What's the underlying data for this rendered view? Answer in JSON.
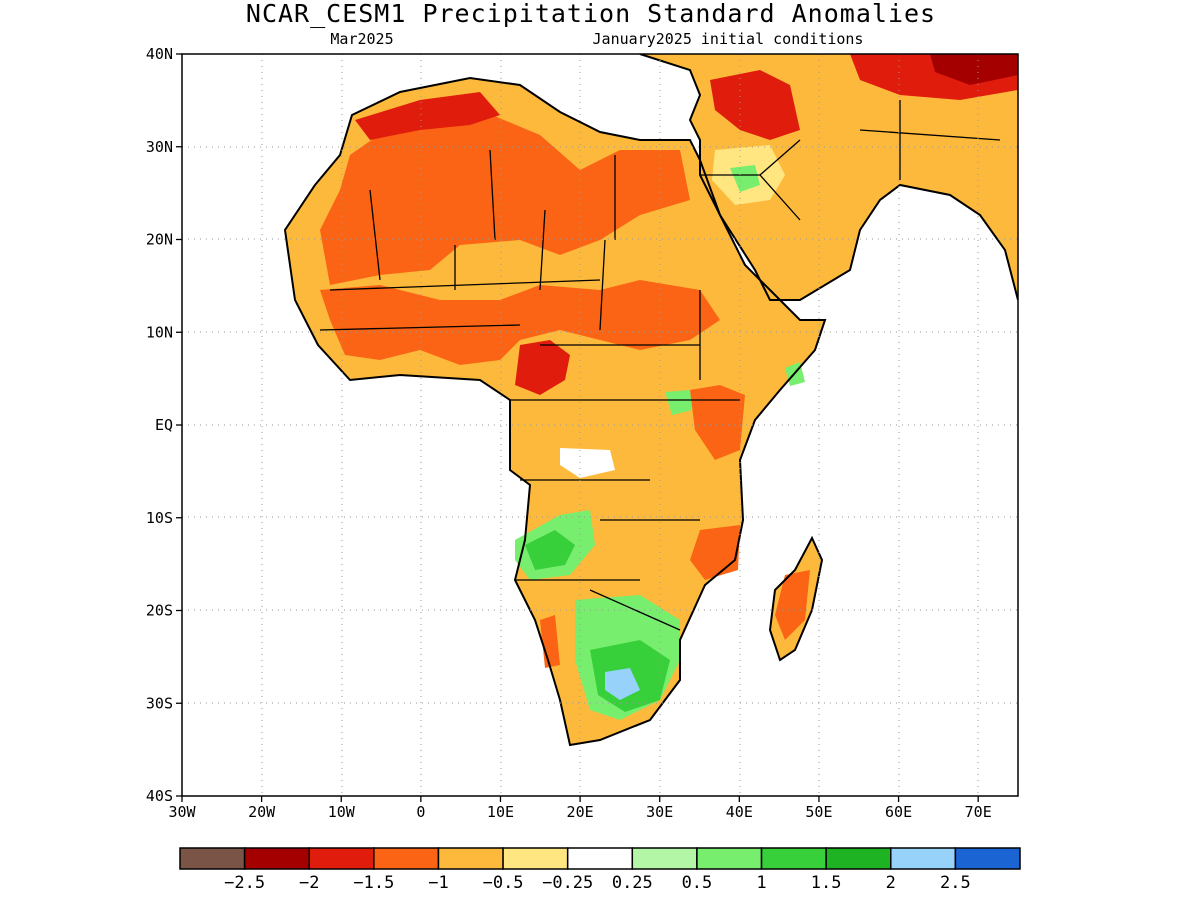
{
  "title": "NCAR_CESM1 Precipitation Standard Anomalies",
  "subtitle_left": "Mar2025",
  "subtitle_right": "January2025 initial conditions",
  "lat_labels": [
    "40N",
    "30N",
    "20N",
    "10N",
    "EQ",
    "10S",
    "20S",
    "30S",
    "40S"
  ],
  "lon_labels": [
    "30W",
    "20W",
    "10W",
    "0",
    "10E",
    "20E",
    "30E",
    "40E",
    "50E",
    "60E",
    "70E"
  ],
  "colorbar": {
    "colors": [
      "#7a5447",
      "#a50000",
      "#e01c0c",
      "#fa6414",
      "#fdb93b",
      "#ffe680",
      "#ffffff",
      "#b3f7a6",
      "#78ee6e",
      "#37d03b",
      "#1eb322",
      "#97d2fb",
      "#1a64d4"
    ],
    "labels": [
      "−2.5",
      "−2",
      "−1.5",
      "−1",
      "−0.5",
      "−0.25",
      "0.25",
      "0.5",
      "1",
      "1.5",
      "2",
      "2.5"
    ]
  },
  "map_layers": {
    "land_color": "#ffffff",
    "coast_color": "#000000"
  }
}
